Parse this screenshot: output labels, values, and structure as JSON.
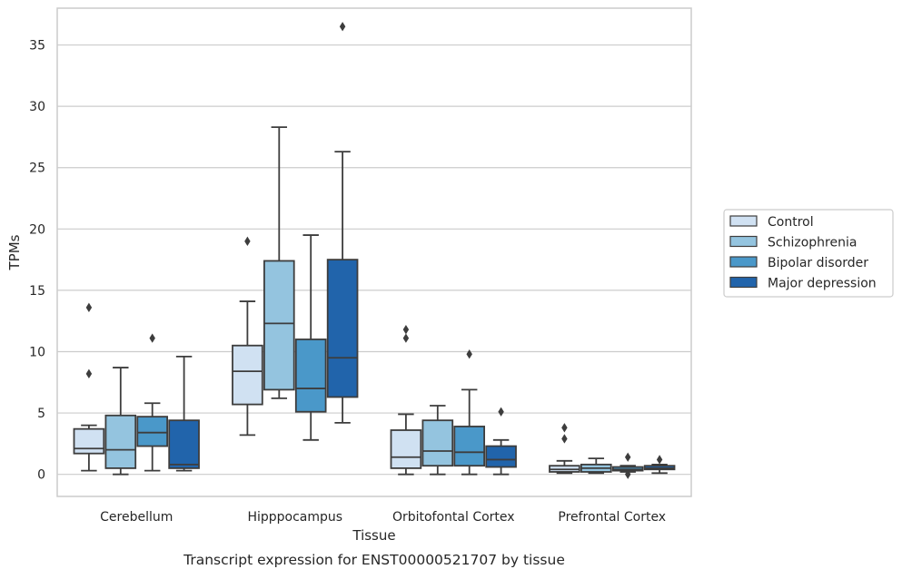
{
  "chart_data": {
    "type": "box",
    "title": "",
    "xlabel": "Tissue",
    "ylabel": "TPMs",
    "caption": "Transcript expression for ENST00000521707 by tissue",
    "ylim": [
      -1.8,
      38.0
    ],
    "yticks": [
      0,
      5,
      10,
      15,
      20,
      25,
      30,
      35
    ],
    "grid": "horizontal",
    "legend_position": "right",
    "categories": [
      "Cerebellum",
      "Hipppocampus",
      "Orbitofontal Cortex",
      "Prefrontal Cortex"
    ],
    "series": [
      {
        "name": "Control",
        "color": "#d0e1f2",
        "boxes": [
          {
            "whislo": 0.3,
            "q1": 1.7,
            "med": 2.1,
            "q3": 3.7,
            "whishi": 4.0,
            "fliers": [
              8.2,
              13.6
            ]
          },
          {
            "whislo": 3.2,
            "q1": 5.7,
            "med": 8.4,
            "q3": 10.5,
            "whishi": 14.1,
            "fliers": [
              19.0
            ]
          },
          {
            "whislo": 0.0,
            "q1": 0.5,
            "med": 1.4,
            "q3": 3.6,
            "whishi": 4.9,
            "fliers": [
              11.1,
              11.8
            ]
          },
          {
            "whislo": 0.1,
            "q1": 0.2,
            "med": 0.4,
            "q3": 0.7,
            "whishi": 1.1,
            "fliers": [
              2.9,
              3.8
            ]
          }
        ]
      },
      {
        "name": "Schizophrenia",
        "color": "#94c4df",
        "boxes": [
          {
            "whislo": 0.0,
            "q1": 0.5,
            "med": 2.0,
            "q3": 4.8,
            "whishi": 8.7,
            "fliers": []
          },
          {
            "whislo": 6.2,
            "q1": 6.9,
            "med": 12.3,
            "q3": 17.4,
            "whishi": 28.3,
            "fliers": []
          },
          {
            "whislo": 0.0,
            "q1": 0.7,
            "med": 1.9,
            "q3": 4.4,
            "whishi": 5.6,
            "fliers": []
          },
          {
            "whislo": 0.1,
            "q1": 0.2,
            "med": 0.5,
            "q3": 0.8,
            "whishi": 1.3,
            "fliers": []
          }
        ]
      },
      {
        "name": "Bipolar disorder",
        "color": "#4a98c9",
        "boxes": [
          {
            "whislo": 0.3,
            "q1": 2.3,
            "med": 3.4,
            "q3": 4.7,
            "whishi": 5.8,
            "fliers": [
              11.1
            ]
          },
          {
            "whislo": 2.8,
            "q1": 5.1,
            "med": 7.0,
            "q3": 11.0,
            "whishi": 19.5,
            "fliers": []
          },
          {
            "whislo": 0.0,
            "q1": 0.7,
            "med": 1.8,
            "q3": 3.9,
            "whishi": 6.9,
            "fliers": [
              9.8
            ]
          },
          {
            "whislo": 0.2,
            "q1": 0.3,
            "med": 0.4,
            "q3": 0.6,
            "whishi": 0.7,
            "fliers": [
              1.4,
              0.0
            ]
          }
        ]
      },
      {
        "name": "Major depression",
        "color": "#2164ab",
        "boxes": [
          {
            "whislo": 0.3,
            "q1": 0.5,
            "med": 0.8,
            "q3": 4.4,
            "whishi": 9.6,
            "fliers": []
          },
          {
            "whislo": 4.2,
            "q1": 6.3,
            "med": 9.5,
            "q3": 17.5,
            "whishi": 26.3,
            "fliers": [
              36.5
            ]
          },
          {
            "whislo": 0.0,
            "q1": 0.6,
            "med": 1.2,
            "q3": 2.3,
            "whishi": 2.8,
            "fliers": [
              5.1
            ]
          },
          {
            "whislo": 0.1,
            "q1": 0.4,
            "med": 0.5,
            "q3": 0.7,
            "whishi": 0.8,
            "fliers": [
              1.2
            ]
          }
        ]
      }
    ]
  }
}
